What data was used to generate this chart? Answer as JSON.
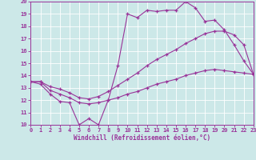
{
  "title": "",
  "xlabel": "Windchill (Refroidissement éolien,°C)",
  "background_color": "#cce8e8",
  "line_color": "#993399",
  "xlim": [
    0,
    23
  ],
  "ylim": [
    10,
    20
  ],
  "xticks": [
    0,
    1,
    2,
    3,
    4,
    5,
    6,
    7,
    8,
    9,
    10,
    11,
    12,
    13,
    14,
    15,
    16,
    17,
    18,
    19,
    20,
    21,
    22,
    23
  ],
  "yticks": [
    10,
    11,
    12,
    13,
    14,
    15,
    16,
    17,
    18,
    19,
    20
  ],
  "line1_x": [
    0,
    1,
    2,
    3,
    4,
    5,
    6,
    7,
    8,
    9,
    10,
    11,
    12,
    13,
    14,
    15,
    16,
    17,
    18,
    19,
    20,
    21,
    22,
    23
  ],
  "line1_y": [
    13.5,
    13.3,
    12.5,
    11.9,
    11.8,
    10.0,
    10.5,
    10.0,
    12.0,
    14.8,
    19.0,
    18.7,
    19.3,
    19.2,
    19.3,
    19.3,
    20.0,
    19.5,
    18.4,
    18.5,
    17.7,
    16.5,
    15.2,
    14.1
  ],
  "line2_x": [
    0,
    1,
    2,
    3,
    4,
    5,
    6,
    7,
    8,
    9,
    10,
    11,
    12,
    13,
    14,
    15,
    16,
    17,
    18,
    19,
    20,
    21,
    22,
    23
  ],
  "line2_y": [
    13.5,
    13.5,
    13.1,
    12.9,
    12.6,
    12.2,
    12.1,
    12.3,
    12.7,
    13.2,
    13.7,
    14.2,
    14.8,
    15.3,
    15.7,
    16.1,
    16.6,
    17.0,
    17.4,
    17.6,
    17.6,
    17.3,
    16.5,
    14.1
  ],
  "line3_x": [
    0,
    1,
    2,
    3,
    4,
    5,
    6,
    7,
    8,
    9,
    10,
    11,
    12,
    13,
    14,
    15,
    16,
    17,
    18,
    19,
    20,
    21,
    22,
    23
  ],
  "line3_y": [
    13.5,
    13.5,
    12.8,
    12.5,
    12.2,
    11.8,
    11.7,
    11.8,
    12.0,
    12.2,
    12.5,
    12.7,
    13.0,
    13.3,
    13.5,
    13.7,
    14.0,
    14.2,
    14.4,
    14.5,
    14.4,
    14.3,
    14.2,
    14.1
  ]
}
